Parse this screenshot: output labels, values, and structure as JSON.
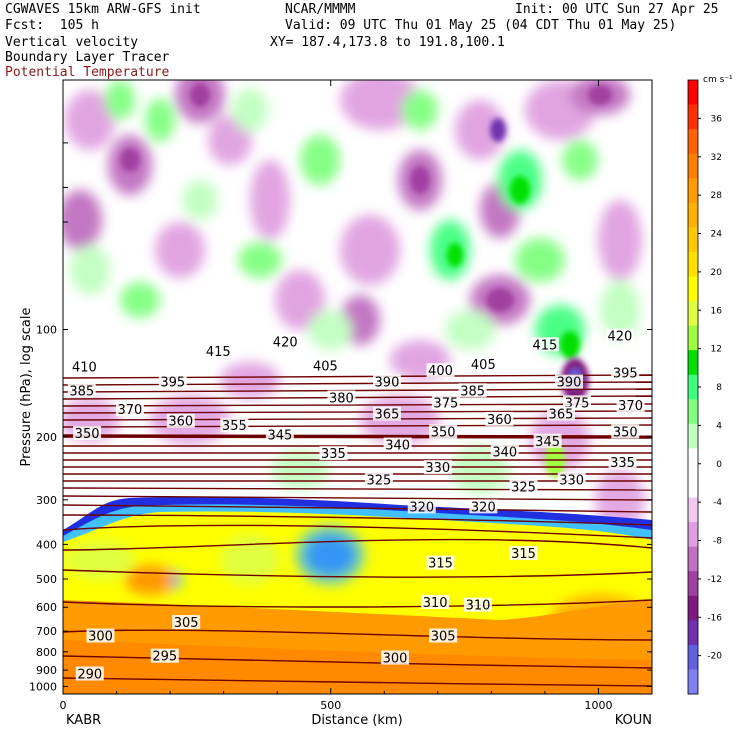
{
  "header": {
    "model": "CGWAVES 15km ARW-GFS init",
    "org": "NCAR/MMMM",
    "init": "Init: 00 UTC Sun 27 Apr 25",
    "fcst": "Fcst:  105 h",
    "valid": "Valid: 09 UTC Thu 01 May 25 (04 CDT Thu 01 May 25)",
    "field1": "Vertical velocity",
    "field2": "Boundary Layer Tracer",
    "field3": "Potential Temperature",
    "xy": "XY= 187.4,173.8 to 191.8,100.1"
  },
  "colors": {
    "theta": "#6e0000",
    "field3_text": "#8b1a1a",
    "pbl_blue": "#2030e0"
  },
  "chart_data": {
    "type": "heatmap",
    "title": "Vertical velocity",
    "xlabel": "Distance (km)",
    "ylabel": "Pressure (hPa), log scale",
    "xlim": [
      0,
      1100
    ],
    "ylim": [
      1050,
      20
    ],
    "y_scale": "log",
    "x_ticks": [
      0,
      500,
      1000
    ],
    "y_ticks": [
      100,
      200,
      300,
      400,
      500,
      600,
      700,
      800,
      900,
      1000
    ],
    "endpoints": {
      "left": "KABR",
      "right": "KOUN"
    },
    "colorbar": {
      "unit": "cm s⁻¹",
      "labels": [
        36,
        32,
        28,
        24,
        20,
        16,
        12,
        8,
        4,
        0,
        -4,
        -8,
        -12,
        -16,
        -20
      ],
      "colors": [
        "#ff0000",
        "#ff3000",
        "#ff6000",
        "#ff8000",
        "#ff9a00",
        "#ffb000",
        "#ffc800",
        "#ffe000",
        "#ffff00",
        "#e0ff40",
        "#a0ff40",
        "#00e000",
        "#40ff80",
        "#80ff80",
        "#c0ffc0",
        "#ffffff",
        "#ffffff",
        "#f0c8f0",
        "#e0a0e0",
        "#c070c0",
        "#a040a0",
        "#801a80",
        "#7030b0",
        "#6060e0",
        "#8080f0"
      ]
    },
    "theta_labels": [
      {
        "text": "415",
        "x": 290,
        "p": 115
      },
      {
        "text": "420",
        "x": 415,
        "p": 108
      },
      {
        "text": "405",
        "x": 490,
        "p": 126
      },
      {
        "text": "400",
        "x": 705,
        "p": 130
      },
      {
        "text": "405",
        "x": 785,
        "p": 125
      },
      {
        "text": "415",
        "x": 900,
        "p": 110
      },
      {
        "text": "420",
        "x": 1040,
        "p": 104
      },
      {
        "text": "410",
        "x": 40,
        "p": 127
      },
      {
        "text": "395",
        "x": 205,
        "p": 140
      },
      {
        "text": "390",
        "x": 605,
        "p": 140
      },
      {
        "text": "390",
        "x": 945,
        "p": 140
      },
      {
        "text": "395",
        "x": 1050,
        "p": 132
      },
      {
        "text": "385",
        "x": 35,
        "p": 148
      },
      {
        "text": "385",
        "x": 765,
        "p": 148
      },
      {
        "text": "380",
        "x": 520,
        "p": 155
      },
      {
        "text": "375",
        "x": 715,
        "p": 160
      },
      {
        "text": "375",
        "x": 960,
        "p": 160
      },
      {
        "text": "370",
        "x": 125,
        "p": 167
      },
      {
        "text": "370",
        "x": 1060,
        "p": 163
      },
      {
        "text": "365",
        "x": 605,
        "p": 172
      },
      {
        "text": "365",
        "x": 930,
        "p": 172
      },
      {
        "text": "360",
        "x": 220,
        "p": 180
      },
      {
        "text": "360",
        "x": 815,
        "p": 178
      },
      {
        "text": "355",
        "x": 320,
        "p": 185
      },
      {
        "text": "350",
        "x": 45,
        "p": 195
      },
      {
        "text": "350",
        "x": 710,
        "p": 193
      },
      {
        "text": "350",
        "x": 1050,
        "p": 193
      },
      {
        "text": "345",
        "x": 405,
        "p": 197
      },
      {
        "text": "345",
        "x": 905,
        "p": 205
      },
      {
        "text": "340",
        "x": 625,
        "p": 210
      },
      {
        "text": "340",
        "x": 825,
        "p": 220
      },
      {
        "text": "335",
        "x": 505,
        "p": 222
      },
      {
        "text": "335",
        "x": 1045,
        "p": 235
      },
      {
        "text": "330",
        "x": 700,
        "p": 243
      },
      {
        "text": "330",
        "x": 950,
        "p": 263
      },
      {
        "text": "325",
        "x": 590,
        "p": 263
      },
      {
        "text": "325",
        "x": 860,
        "p": 275
      },
      {
        "text": "320",
        "x": 670,
        "p": 313
      },
      {
        "text": "320",
        "x": 785,
        "p": 313
      },
      {
        "text": "315",
        "x": 705,
        "p": 450
      },
      {
        "text": "315",
        "x": 860,
        "p": 423
      },
      {
        "text": "310",
        "x": 695,
        "p": 580
      },
      {
        "text": "310",
        "x": 775,
        "p": 590
      },
      {
        "text": "305",
        "x": 230,
        "p": 660
      },
      {
        "text": "305",
        "x": 710,
        "p": 720
      },
      {
        "text": "300",
        "x": 70,
        "p": 720
      },
      {
        "text": "300",
        "x": 620,
        "p": 830
      },
      {
        "text": "295",
        "x": 190,
        "p": 820
      },
      {
        "text": "290",
        "x": 50,
        "p": 920
      }
    ]
  }
}
